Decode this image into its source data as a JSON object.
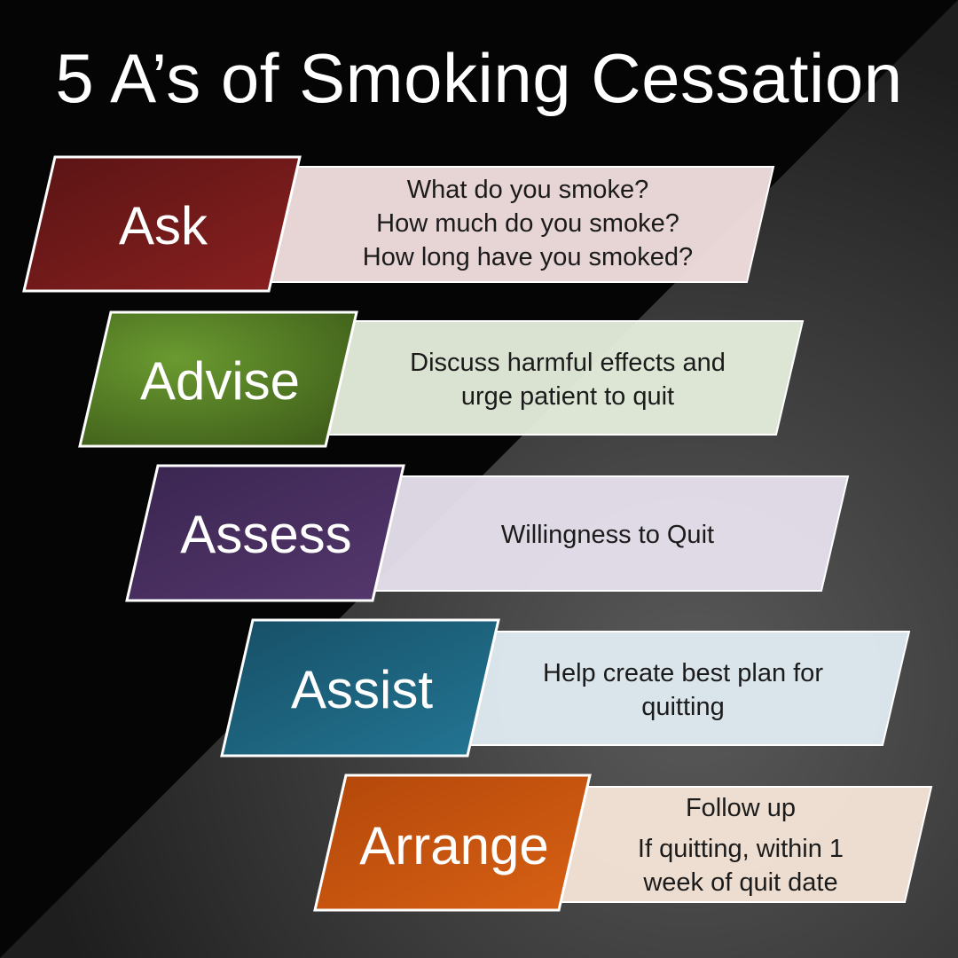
{
  "title": "5 A’s of Smoking Cessation",
  "steps": [
    {
      "label": "Ask",
      "color": "#7a1c1c",
      "lines": [
        "What do you smoke?",
        "How much do you smoke?",
        "How long have you smoked?"
      ]
    },
    {
      "label": "Advise",
      "color": "#4f7322",
      "lines": [
        "Discuss harmful effects and",
        "urge patient to quit"
      ]
    },
    {
      "label": "Assess",
      "color": "#48305f",
      "lines": [
        "Willingness to Quit"
      ]
    },
    {
      "label": "Assist",
      "color": "#1f6a85",
      "lines": [
        "Help create best plan for",
        "quitting"
      ]
    },
    {
      "label": "Arrange",
      "color": "#c4530f",
      "lines": [
        "Follow up",
        "If quitting, within 1",
        "week of quit date"
      ]
    }
  ]
}
